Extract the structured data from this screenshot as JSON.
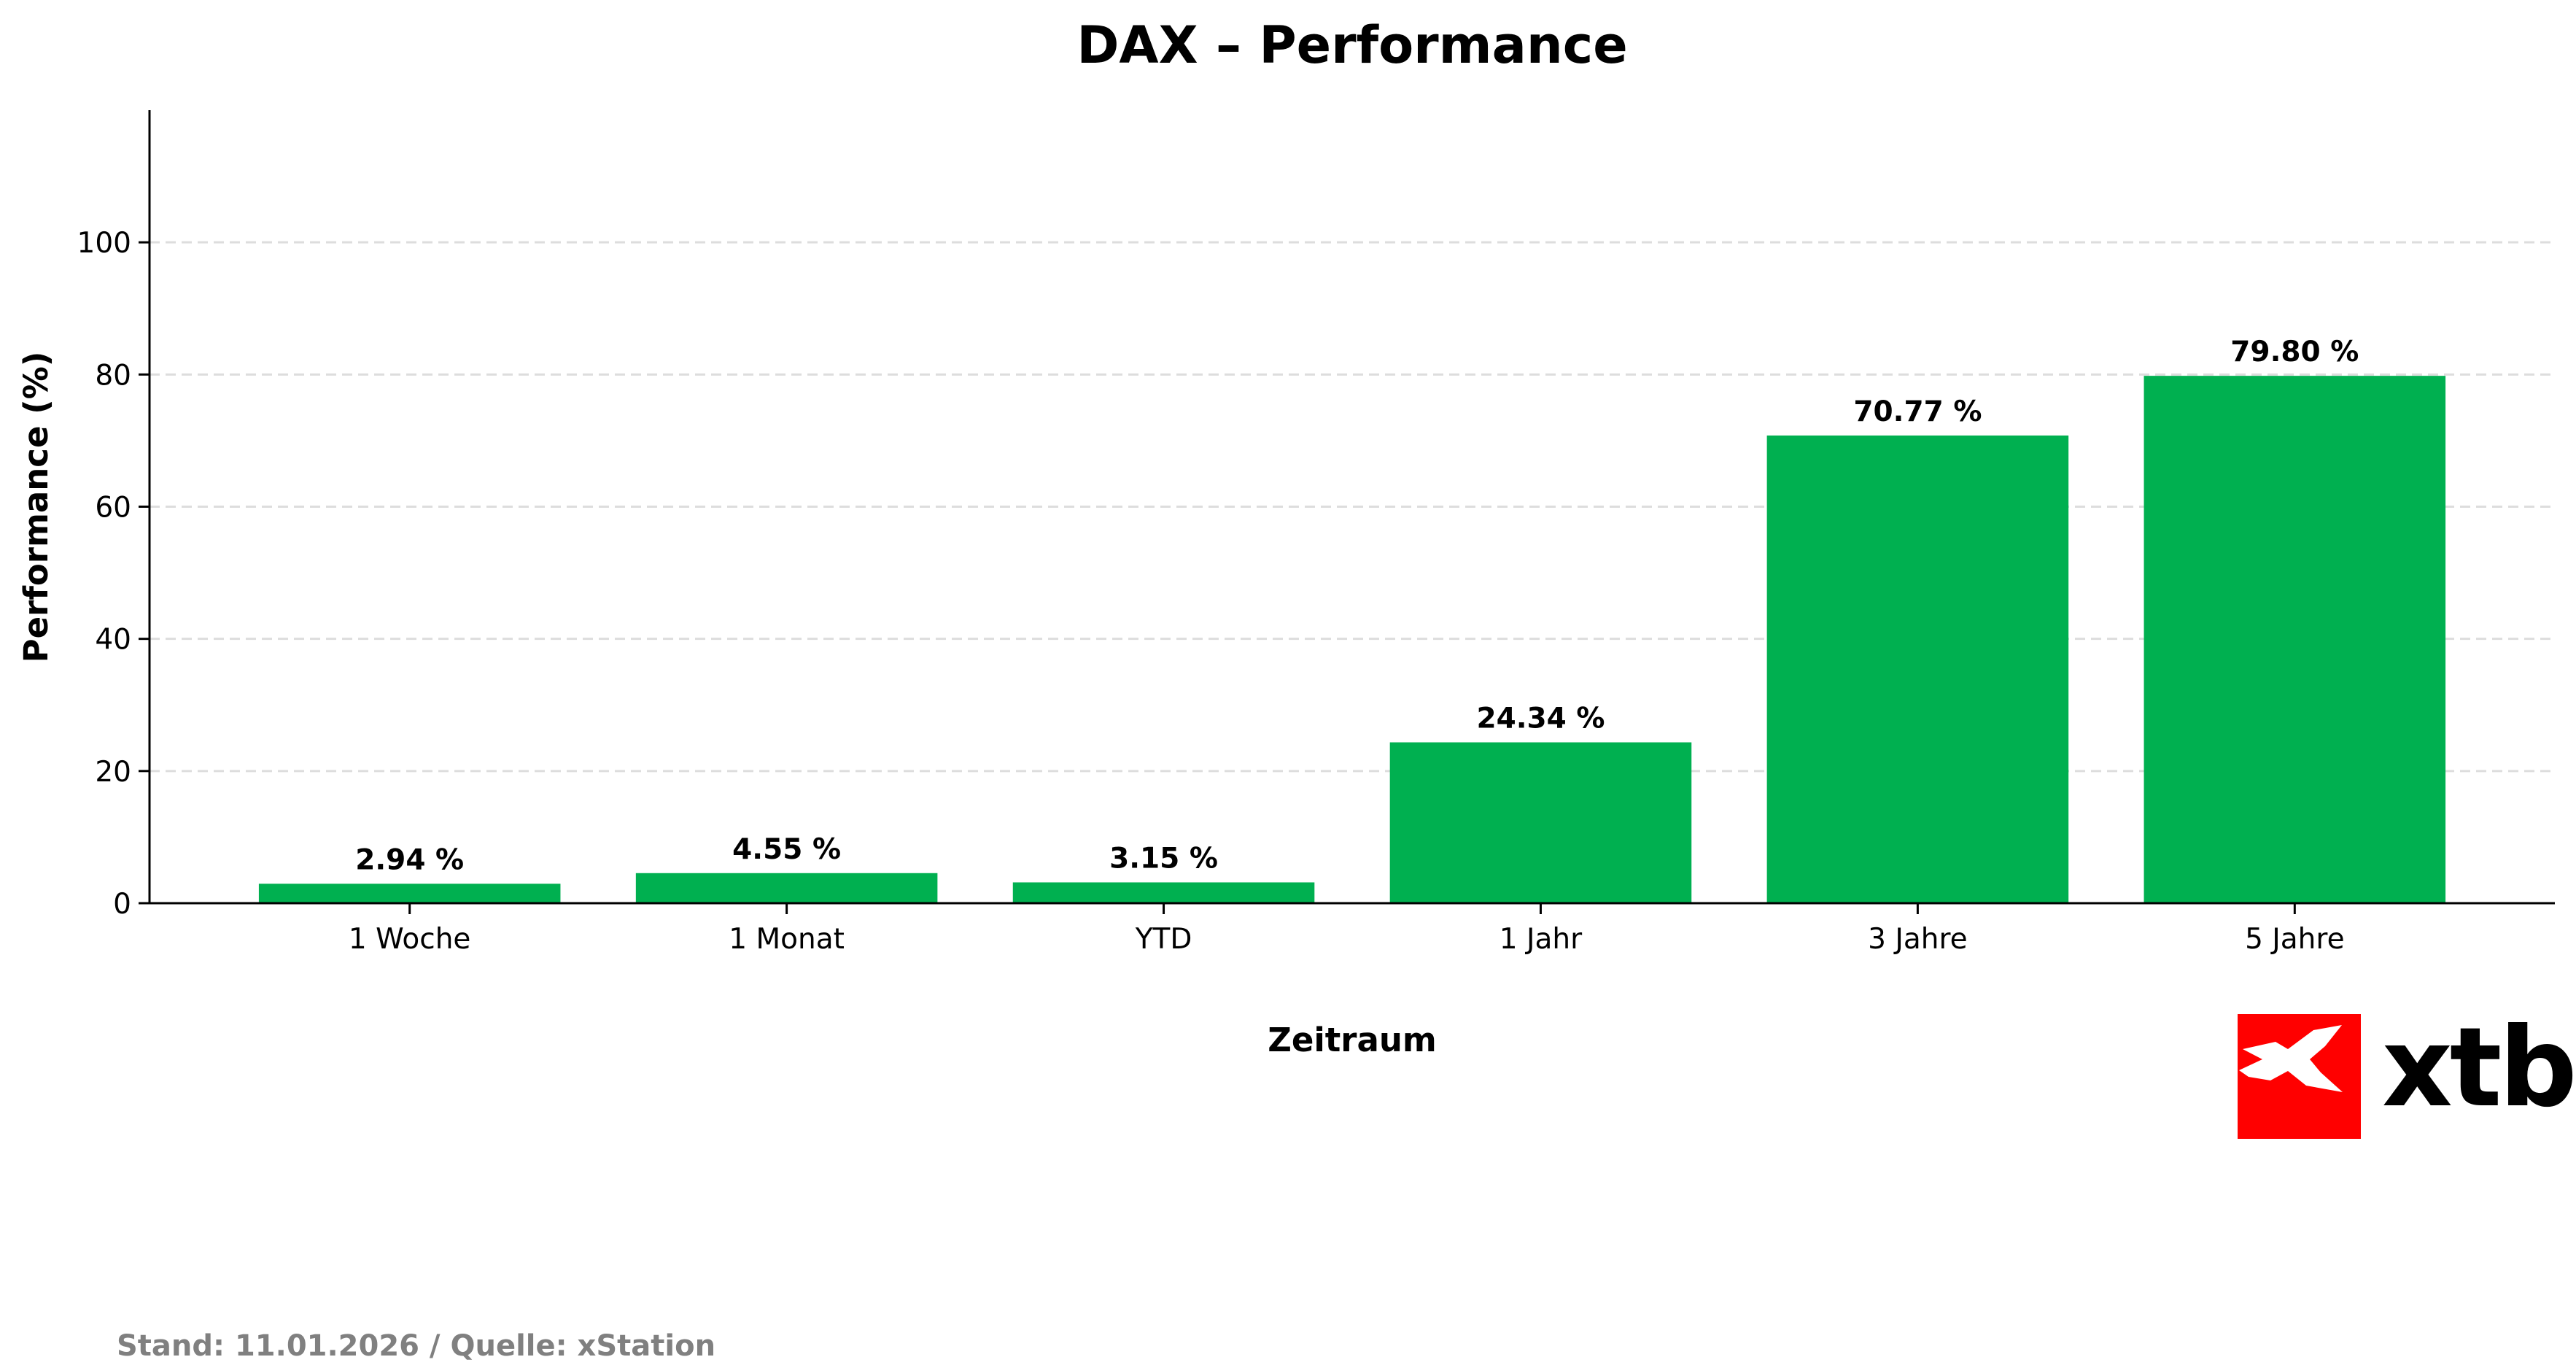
{
  "chart_data": {
    "type": "bar",
    "title": "DAX – Performance",
    "xlabel": "Zeitraum",
    "ylabel": "Performance (%)",
    "categories": [
      "1 Woche",
      "1 Monat",
      "YTD",
      "1 Jahr",
      "3 Jahre",
      "5 Jahre"
    ],
    "values": [
      2.94,
      4.55,
      3.15,
      24.34,
      70.77,
      79.8
    ],
    "data_labels": [
      "2.94 %",
      "4.55 %",
      "3.15 %",
      "24.34 %",
      "70.77 %",
      "79.80 %"
    ],
    "ylim": [
      0,
      120
    ],
    "yticks": [
      0,
      20,
      40,
      60,
      80,
      100
    ],
    "grid": "y-dashed",
    "legend": "none",
    "bar_color": "#00b050"
  },
  "footer": "Stand: 11.01.2026 / Quelle: xStation",
  "logo": {
    "text": "xtb",
    "color": "#ff0000"
  }
}
